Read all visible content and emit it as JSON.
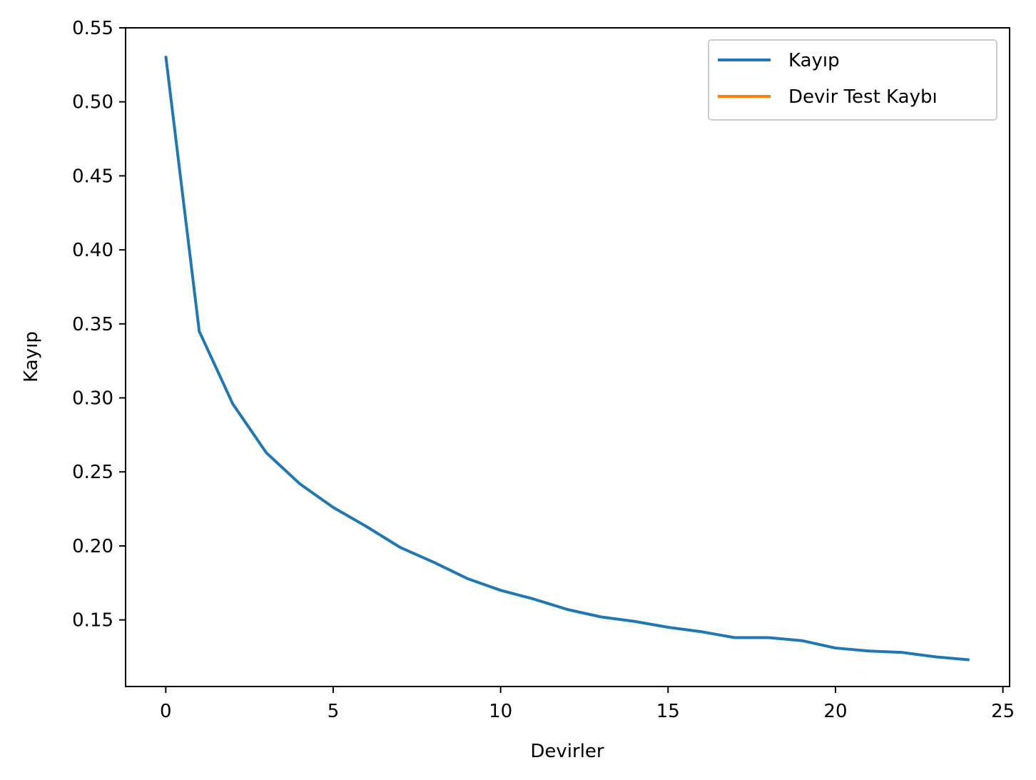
{
  "chart_data": {
    "type": "line",
    "title": "",
    "xlabel": "Devirler",
    "ylabel": "Kayıp",
    "xlim": [
      -1.2,
      25.2
    ],
    "ylim": [
      0.105,
      0.55
    ],
    "xticks": [
      0,
      5,
      10,
      15,
      20,
      25
    ],
    "xtick_labels": [
      "0",
      "5",
      "10",
      "15",
      "20",
      "25"
    ],
    "yticks": [
      0.15,
      0.2,
      0.25,
      0.3,
      0.35,
      0.4,
      0.45,
      0.5,
      0.55
    ],
    "ytick_labels": [
      "0.15",
      "0.20",
      "0.25",
      "0.30",
      "0.35",
      "0.40",
      "0.45",
      "0.50",
      "0.55"
    ],
    "grid": false,
    "legend_position": "top-right",
    "series": [
      {
        "name": "Kayıp",
        "color": "#1f77b4",
        "x": [
          0,
          1,
          2,
          3,
          4,
          5,
          6,
          7,
          8,
          9,
          10,
          11,
          12,
          13,
          14,
          15,
          16,
          17,
          18,
          19,
          20,
          21,
          22,
          23,
          24
        ],
        "y": [
          0.531,
          0.345,
          0.296,
          0.263,
          0.242,
          0.226,
          0.213,
          0.199,
          0.189,
          0.178,
          0.17,
          0.164,
          0.157,
          0.152,
          0.149,
          0.145,
          0.142,
          0.138,
          0.138,
          0.136,
          0.131,
          0.129,
          0.128,
          0.125,
          0.123
        ]
      },
      {
        "name": "Devir Test Kaybı",
        "color": "#ff7f0e",
        "x": [],
        "y": []
      }
    ]
  }
}
